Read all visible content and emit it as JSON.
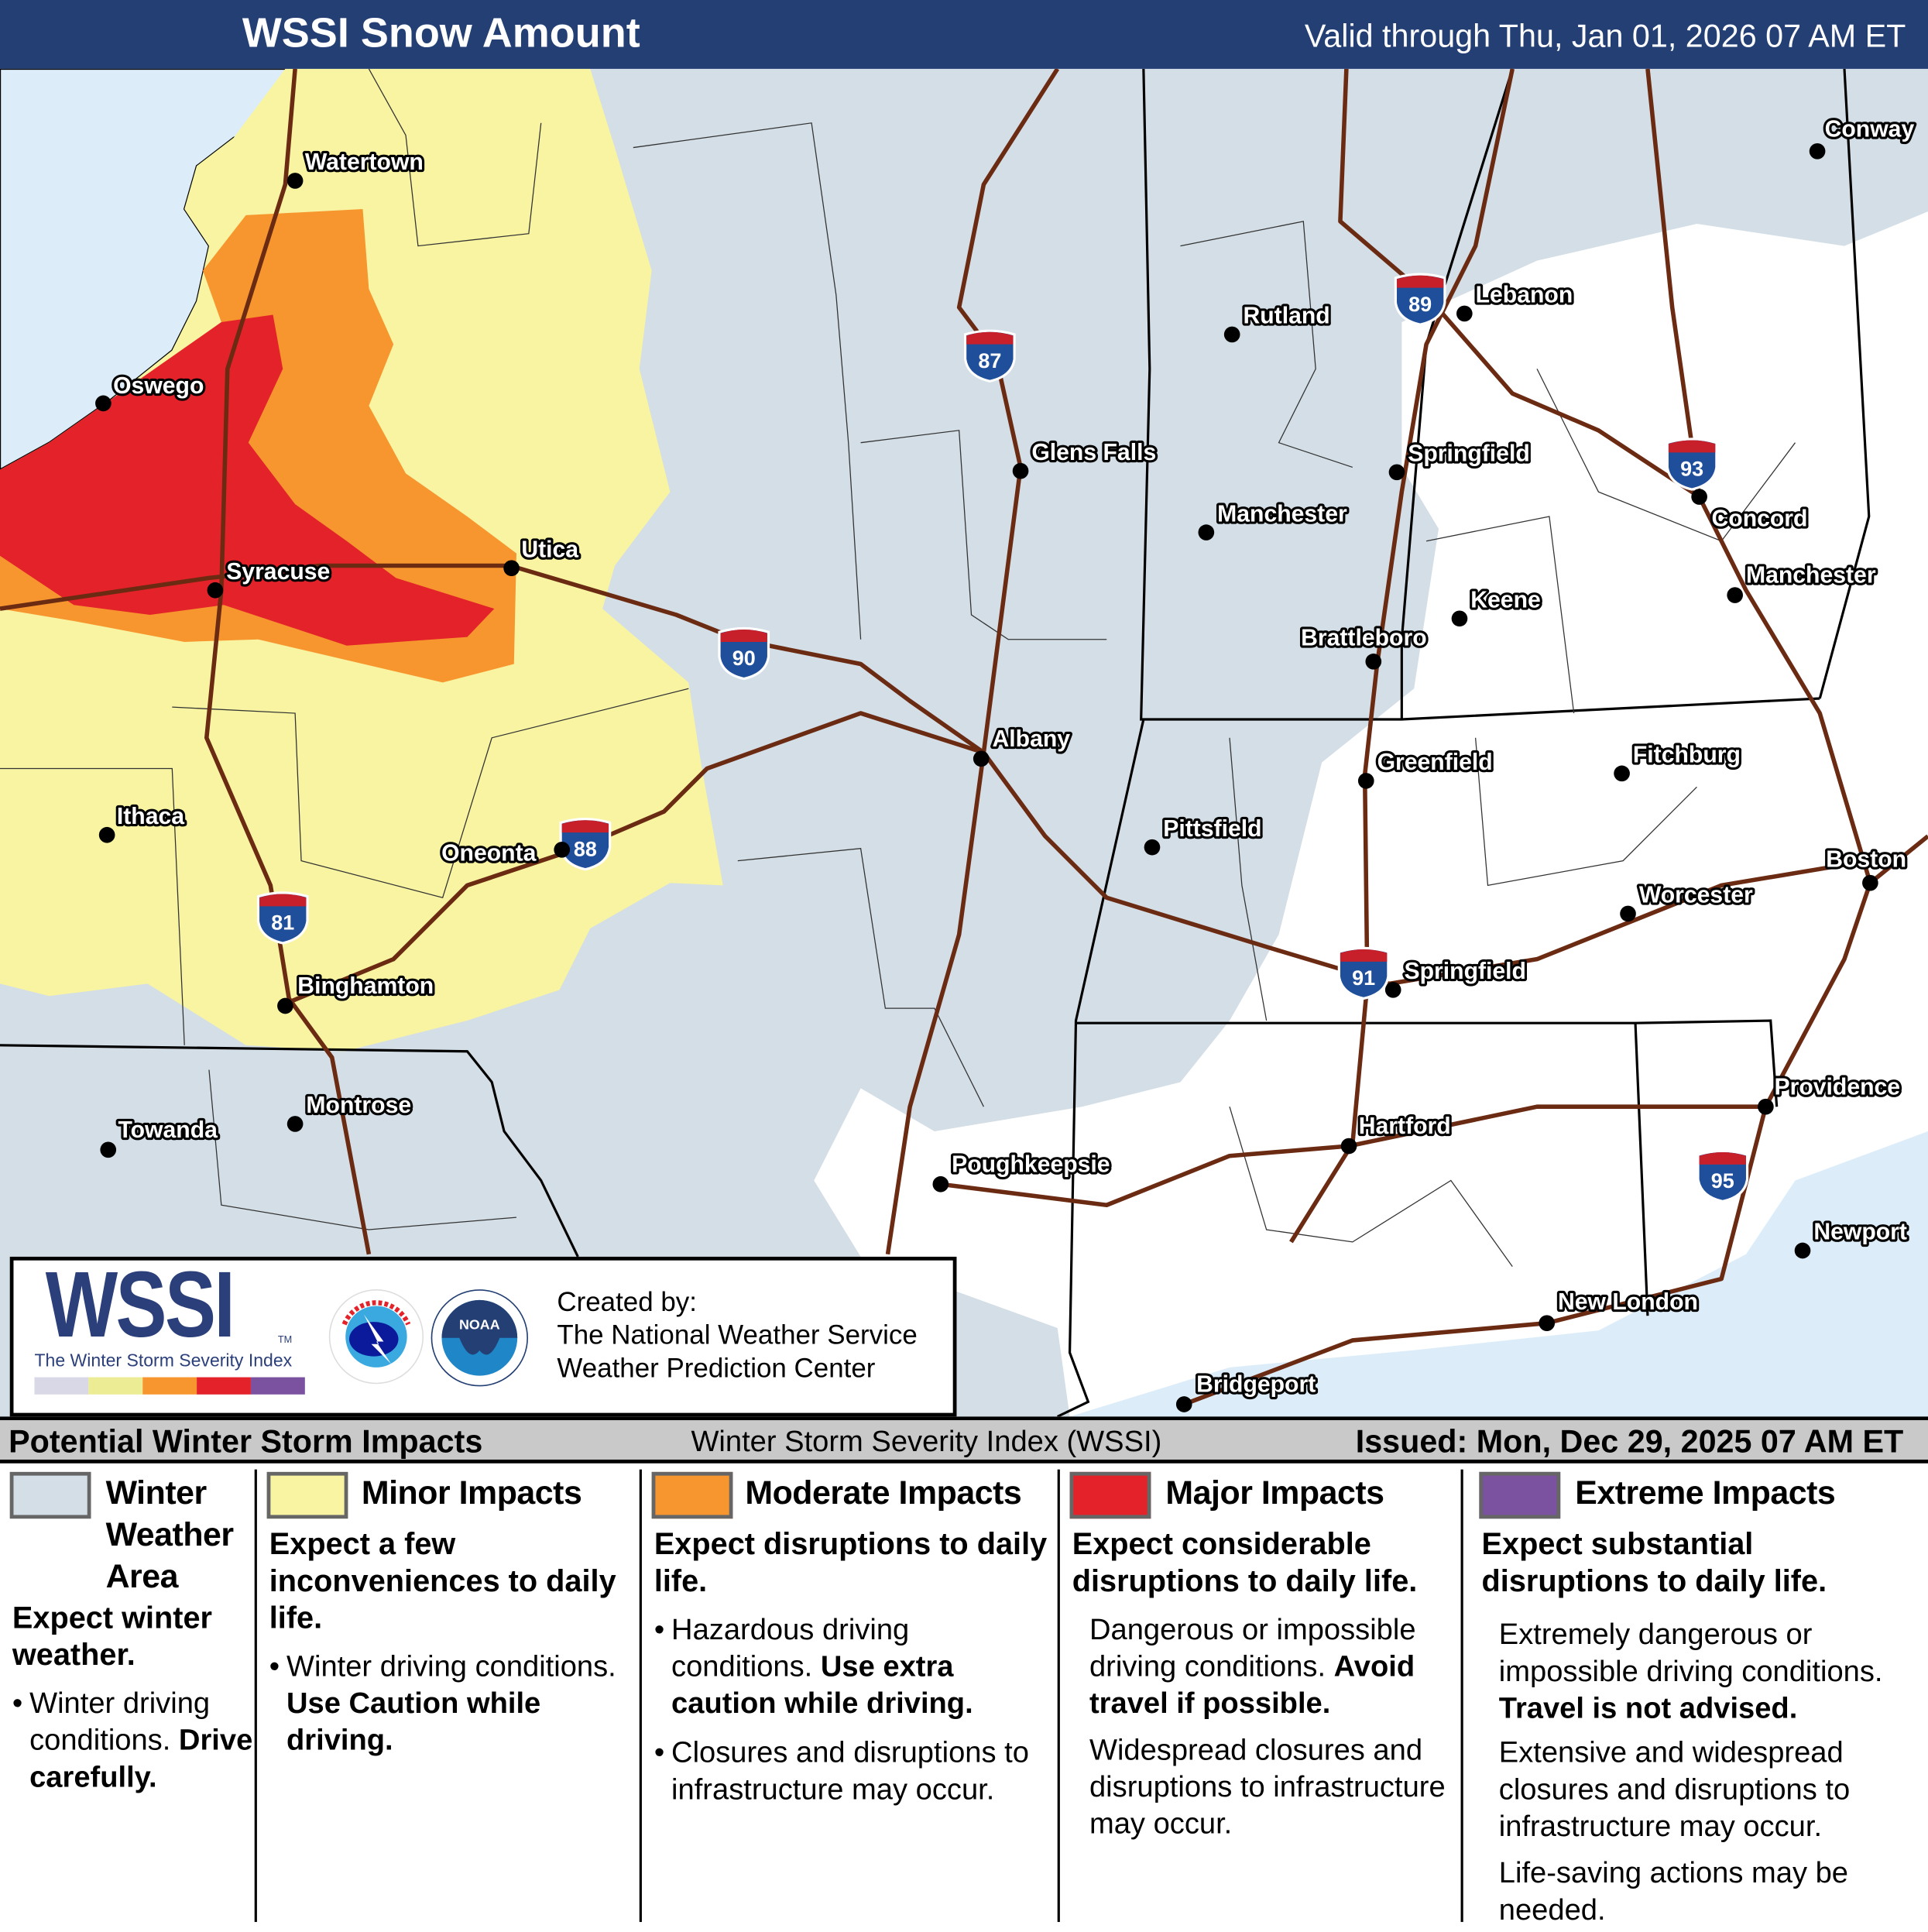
{
  "header": {
    "title": "WSSI Snow Amount",
    "valid": "Valid through Thu, Jan 01, 2026 07 AM ET"
  },
  "colors": {
    "winter": "#d3dee6",
    "minor": "#f8f4a2",
    "moderate": "#f7962e",
    "major": "#e3222a",
    "extreme": "#7a52a0",
    "header": "#233f74",
    "highway": "#6b2a12",
    "water": "#dcedf9"
  },
  "map": {
    "cities": [
      "Watertown",
      "Oswego",
      "Syracuse",
      "Utica",
      "Ithaca",
      "Oneonta",
      "Binghamton",
      "Montrose",
      "Towanda",
      "Glens Falls",
      "Albany",
      "Poughkeepsie",
      "Rutland",
      "Manchester",
      "Brattleboro",
      "Springfield",
      "Keene",
      "Lebanon",
      "Conway",
      "Concord",
      "Manchester",
      "Greenfield",
      "Fitchburg",
      "Pittsfield",
      "Worcester",
      "Springfield",
      "Boston",
      "Hartford",
      "Providence",
      "Newport",
      "New London",
      "Bridgeport"
    ],
    "shields": [
      "87",
      "90",
      "88",
      "81",
      "89",
      "93",
      "91",
      "95"
    ]
  },
  "logo": {
    "wssi": "WSSI",
    "tm": "TM",
    "subtitle": "The Winter Storm Severity Index",
    "nws_icon": "nws-logo",
    "noaa_icon": "noaa-logo",
    "noaa_text": "NOAA",
    "created_by": "Created by:",
    "org1": "The National Weather Service",
    "org2": "Weather Prediction Center"
  },
  "legend": {
    "title": "Potential Winter Storm Impacts",
    "subtitle": "Winter Storm Severity Index (WSSI)",
    "issued": "Issued: Mon, Dec 29, 2025 07 AM ET",
    "winter": {
      "name": "Winter Weather Area",
      "headline": "Expect winter weather.",
      "b1": "Winter driving conditions.",
      "b1_bold": "Drive carefully."
    },
    "minor": {
      "name": "Minor Impacts",
      "headline": "Expect a few inconveniences to daily life.",
      "b1": "Winter driving conditions.",
      "b1_bold": "Use Caution while driving."
    },
    "moderate": {
      "name": "Moderate Impacts",
      "headline": "Expect disruptions to daily life.",
      "b1": "Hazardous driving conditions.",
      "b1_bold": "Use extra caution while driving.",
      "b2": "Closures and disruptions to infrastructure may occur."
    },
    "major": {
      "name": "Major Impacts",
      "headline": "Expect considerable disruptions to daily life.",
      "p1": "Dangerous or impossible driving conditions.",
      "p1_bold": "Avoid travel if possible.",
      "p2": "Widespread closures and disruptions to infrastructure may occur."
    },
    "extreme": {
      "name": "Extreme Impacts",
      "headline": "Expect substantial disruptions to daily life.",
      "p1": "Extremely dangerous or impossible driving conditions.",
      "p1_bold": "Travel is not advised.",
      "p2": "Extensive and widespread closures and disruptions to infrastructure may occur.",
      "p3": "Life-saving actions may be needed."
    }
  }
}
